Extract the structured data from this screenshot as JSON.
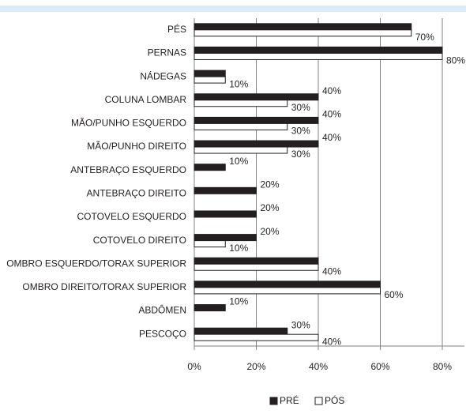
{
  "chart_data": {
    "type": "bar",
    "orientation": "horizontal",
    "categories": [
      "PÉS",
      "PERNAS",
      "NÁDEGAS",
      "COLUNA LOMBAR",
      "MÃO/PUNHO ESQUERDO",
      "MÃO/PUNHO DIREITO",
      "ANTEBRAÇO ESQUERDO",
      "ANTEBRAÇO DIREITO",
      "COTOVELO ESQUERDO",
      "COTOVELO DIREITO",
      "OMBRO ESQUERDO/TORAX SUPERIOR",
      "OMBRO DIREITO/TORAX SUPERIOR",
      "ABDÔMEN",
      "PESCOÇO"
    ],
    "series": [
      {
        "name": "PRÉ",
        "color": "#231f20",
        "values": [
          70,
          80,
          10,
          40,
          40,
          40,
          10,
          20,
          20,
          20,
          40,
          60,
          10,
          30
        ],
        "value_labels": [
          null,
          null,
          null,
          "40%",
          "40%",
          "40%",
          "10%",
          "20%",
          "20%",
          "20%",
          null,
          null,
          "10%",
          "30%"
        ]
      },
      {
        "name": "PÓS",
        "color": "#ffffff",
        "values": [
          70,
          80,
          10,
          30,
          30,
          30,
          0,
          0,
          0,
          10,
          40,
          60,
          0,
          40
        ],
        "value_labels": [
          "70%",
          "80%",
          "10%",
          "30%",
          "30%",
          "30%",
          null,
          null,
          null,
          "10%",
          "40%",
          "60%",
          null,
          "40%"
        ]
      }
    ],
    "xlim": [
      0,
      80
    ],
    "xticks": [
      {
        "value": 0,
        "label": "0%"
      },
      {
        "value": 20,
        "label": "20%"
      },
      {
        "value": 40,
        "label": "40%"
      },
      {
        "value": 60,
        "label": "60%"
      },
      {
        "value": 80,
        "label": "80%"
      }
    ],
    "grid": true,
    "legend": "bottom"
  }
}
